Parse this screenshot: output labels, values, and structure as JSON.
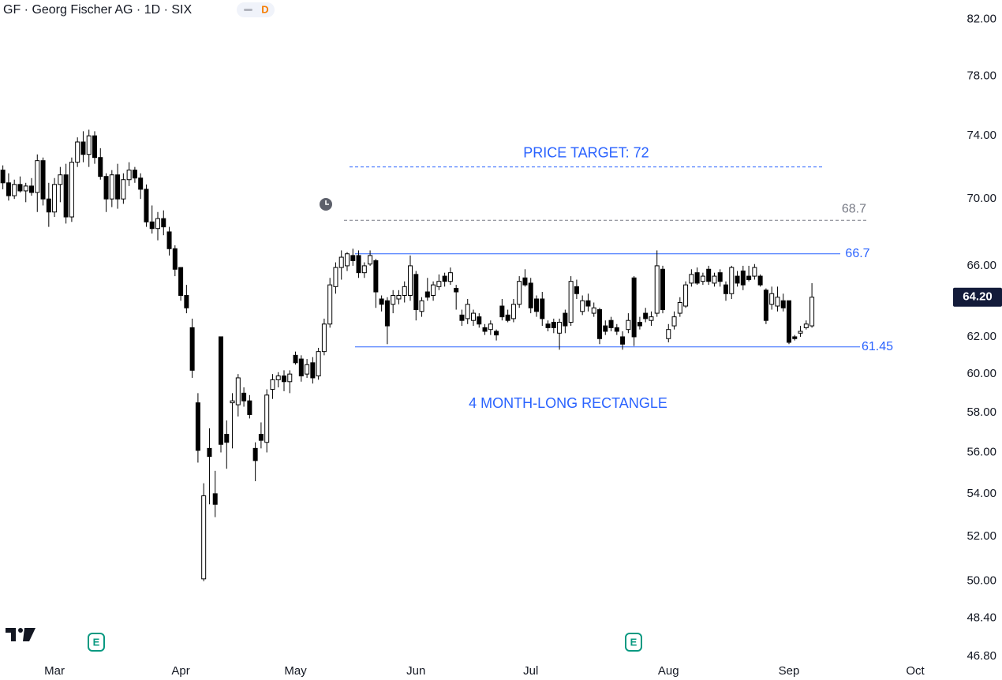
{
  "header": {
    "title": "GF · Georg Fischer AG · 1D · SIX",
    "badge": "D"
  },
  "chart_data": {
    "type": "candlestick",
    "log_scale": true,
    "grid": false,
    "up_color": "#ffffff",
    "down_color": "#000000",
    "wick_color": "#000000",
    "categories": [
      null,
      null,
      null,
      null,
      null,
      null,
      null,
      null,
      null,
      "Mar",
      null,
      null,
      null,
      null,
      null,
      null,
      null,
      null,
      null,
      null,
      null,
      null,
      null,
      null,
      null,
      null,
      null,
      null,
      null,
      null,
      null,
      "Apr",
      null,
      null,
      null,
      null,
      null,
      null,
      null,
      null,
      null,
      null,
      null,
      null,
      null,
      null,
      null,
      null,
      null,
      null,
      null,
      "May",
      null,
      null,
      null,
      null,
      null,
      null,
      null,
      null,
      null,
      null,
      null,
      null,
      null,
      null,
      null,
      null,
      null,
      null,
      null,
      null,
      "Jun",
      null,
      null,
      null,
      null,
      null,
      null,
      null,
      null,
      null,
      null,
      null,
      null,
      null,
      null,
      null,
      null,
      null,
      null,
      null,
      "Jul",
      null,
      null,
      null,
      null,
      null,
      null,
      null,
      null,
      null,
      null,
      null,
      null,
      null,
      null,
      null,
      null,
      null,
      null,
      null,
      null,
      null,
      null,
      null,
      "Aug",
      null,
      null,
      null,
      null,
      null,
      null,
      null,
      null,
      null,
      null,
      null,
      null,
      null,
      null,
      null,
      null,
      null,
      null,
      null,
      null,
      "Sep",
      null,
      null,
      null,
      null,
      null,
      null,
      null,
      null,
      null,
      null,
      null,
      null,
      null,
      null,
      null,
      null,
      null,
      null,
      null,
      null,
      null,
      "Oct",
      null,
      null,
      null,
      null,
      null
    ],
    "open": [
      71.8,
      71.0,
      70.2,
      70.9,
      70.5,
      70.8,
      70.4,
      72.4,
      70.0,
      69.2,
      70.9,
      71.5,
      68.9,
      72.3,
      73.6,
      72.8,
      74.0,
      72.6,
      71.4,
      70.0,
      71.5,
      70.0,
      71.2,
      71.8,
      71.3,
      70.6,
      68.6,
      68.2,
      68.8,
      68.0,
      67.0,
      65.9,
      64.3,
      62.5,
      58.5,
      50.1,
      56.2,
      54.0,
      62.0,
      56.9,
      58.5,
      58.4,
      59.0,
      58.6,
      56.2,
      56.9,
      56.5,
      59.2,
      59.7,
      59.9,
      59.6,
      61.0,
      60.8,
      60.0,
      60.6,
      59.9,
      61.2,
      62.7,
      64.8,
      65.9,
      66.0,
      66.6,
      66.6,
      65.6,
      66.1,
      66.3,
      64.1,
      64.0,
      63.8,
      64.1,
      64.3,
      64.3,
      65.5,
      63.4,
      64.5,
      64.3,
      64.8,
      65.4,
      65.1,
      64.7,
      63.2,
      63.0,
      62.9,
      63.1,
      62.5,
      62.4,
      62.3,
      63.7,
      63.2,
      63.0,
      63.8,
      65.3,
      65.0,
      64.1,
      64.1,
      62.7,
      62.8,
      62.2,
      63.3,
      62.8,
      64.8,
      63.4,
      64.0,
      63.3,
      63.5,
      62.6,
      62.9,
      62.5,
      62.0,
      62.4,
      65.3,
      62.8,
      63.3,
      62.9,
      63.3,
      65.8,
      61.9,
      62.6,
      63.3,
      63.7,
      65.0,
      65.6,
      65.1,
      65.8,
      65.0,
      65.6,
      64.9,
      64.4,
      65.4,
      65.7,
      65.4,
      65.4,
      65.4,
      64.6,
      63.8,
      63.7,
      64.0,
      64.0,
      62.0,
      62.2,
      62.5,
      62.6,
      null,
      null,
      null,
      null,
      null,
      null,
      null,
      null,
      null,
      null,
      null,
      null,
      null,
      null,
      null,
      null,
      null,
      null,
      null,
      null,
      null,
      null,
      null
    ],
    "high": [
      72.1,
      71.6,
      71.2,
      71.4,
      71.0,
      71.3,
      72.8,
      72.6,
      71.0,
      71.3,
      72.0,
      72.2,
      72.6,
      73.9,
      74.3,
      74.4,
      74.3,
      73.2,
      71.6,
      71.8,
      72.2,
      71.6,
      72.3,
      72.0,
      71.6,
      70.9,
      69.6,
      69.2,
      69.3,
      68.3,
      67.2,
      65.9,
      64.9,
      63.0,
      59.0,
      54.5,
      57.2,
      55.1,
      62.0,
      57.6,
      59.0,
      60.0,
      59.3,
      58.9,
      56.5,
      57.5,
      59.2,
      60.0,
      60.1,
      60.2,
      60.2,
      61.2,
      61.0,
      60.8,
      60.9,
      61.4,
      63.0,
      65.3,
      66.2,
      66.9,
      66.8,
      67.0,
      66.9,
      66.2,
      66.9,
      66.4,
      64.3,
      64.2,
      64.6,
      64.6,
      65.1,
      66.6,
      65.7,
      64.2,
      65.3,
      65.1,
      65.5,
      65.6,
      65.9,
      64.9,
      63.5,
      64.1,
      63.5,
      63.3,
      62.7,
      62.9,
      62.4,
      64.1,
      63.5,
      64.1,
      65.4,
      65.8,
      65.3,
      64.3,
      64.5,
      62.9,
      63.0,
      63.0,
      63.5,
      65.4,
      65.2,
      64.3,
      64.4,
      63.9,
      63.6,
      62.9,
      63.1,
      62.7,
      62.3,
      63.3,
      65.4,
      63.1,
      63.6,
      63.4,
      66.9,
      66.0,
      62.7,
      63.4,
      64.2,
      65.1,
      65.8,
      65.9,
      65.6,
      66.0,
      65.6,
      65.8,
      65.1,
      66.0,
      65.7,
      66.0,
      66.0,
      66.1,
      65.5,
      64.7,
      64.8,
      64.8,
      64.4,
      64.0,
      62.1,
      62.6,
      62.9,
      65.0,
      null,
      null,
      null,
      null,
      null,
      null,
      null,
      null,
      null,
      null,
      null,
      null,
      null,
      null,
      null,
      null,
      null,
      null,
      null,
      null,
      null,
      null,
      null
    ],
    "low": [
      70.6,
      69.9,
      70.0,
      70.4,
      69.8,
      70.2,
      69.2,
      69.6,
      68.3,
      68.9,
      69.8,
      68.5,
      68.6,
      72.0,
      72.3,
      72.0,
      72.2,
      71.2,
      69.2,
      69.5,
      69.4,
      69.7,
      70.8,
      71.0,
      70.0,
      68.3,
      67.9,
      67.5,
      67.8,
      66.6,
      65.4,
      64.0,
      63.3,
      59.8,
      55.5,
      50.0,
      53.5,
      52.9,
      56.0,
      55.2,
      56.2,
      57.8,
      58.3,
      57.7,
      54.6,
      56.2,
      56.0,
      58.7,
      59.3,
      59.1,
      59.0,
      60.5,
      59.6,
      59.8,
      59.5,
      59.7,
      61.0,
      62.5,
      64.4,
      65.2,
      65.7,
      66.0,
      65.3,
      65.3,
      66.0,
      63.6,
      63.4,
      61.6,
      63.3,
      63.8,
      63.9,
      64.0,
      62.9,
      63.1,
      64.0,
      64.0,
      64.6,
      64.8,
      64.9,
      63.5,
      62.6,
      62.7,
      62.6,
      62.5,
      62.1,
      62.1,
      61.8,
      62.9,
      62.8,
      62.8,
      63.6,
      64.8,
      63.3,
      63.1,
      62.6,
      62.3,
      62.2,
      61.3,
      62.2,
      62.6,
      64.1,
      63.2,
      63.4,
      63.1,
      61.6,
      62.1,
      62.3,
      62.1,
      61.3,
      62.2,
      61.5,
      62.4,
      62.8,
      62.6,
      63.1,
      63.3,
      61.7,
      62.4,
      63.1,
      63.6,
      64.8,
      64.9,
      64.9,
      64.9,
      64.8,
      64.8,
      64.0,
      64.1,
      64.8,
      64.6,
      65.1,
      65.2,
      64.8,
      62.7,
      63.5,
      63.4,
      63.4,
      61.6,
      61.8,
      62.0,
      62.4,
      62.5,
      null,
      null,
      null,
      null,
      null,
      null,
      null,
      null,
      null,
      null,
      null,
      null,
      null,
      null,
      null,
      null,
      null,
      null,
      null,
      null,
      null,
      null,
      null
    ],
    "close": [
      71.0,
      70.2,
      70.9,
      70.5,
      70.8,
      70.4,
      72.4,
      70.0,
      69.2,
      70.9,
      71.5,
      68.9,
      72.3,
      73.6,
      72.8,
      74.0,
      72.6,
      71.4,
      70.0,
      71.5,
      70.0,
      71.2,
      71.8,
      71.3,
      70.6,
      68.6,
      68.2,
      68.8,
      68.3,
      67.0,
      65.8,
      64.3,
      63.6,
      60.2,
      56.1,
      53.9,
      55.8,
      53.5,
      56.4,
      56.5,
      58.6,
      59.8,
      58.6,
      57.9,
      55.6,
      56.6,
      58.9,
      59.7,
      59.9,
      59.6,
      60.0,
      60.6,
      59.9,
      60.5,
      59.8,
      61.2,
      62.7,
      64.9,
      65.9,
      66.5,
      66.7,
      66.3,
      65.6,
      66.0,
      66.6,
      64.5,
      63.8,
      62.6,
      64.3,
      64.3,
      64.8,
      66.0,
      63.5,
      64.0,
      64.2,
      64.9,
      65.1,
      65.1,
      65.6,
      64.5,
      62.9,
      63.8,
      63.3,
      62.7,
      62.3,
      62.7,
      62.1,
      63.1,
      62.9,
      63.8,
      65.1,
      64.9,
      63.6,
      63.4,
      63.0,
      62.5,
      62.5,
      62.8,
      62.6,
      65.1,
      64.4,
      64.0,
      63.7,
      63.6,
      61.9,
      62.3,
      62.5,
      62.3,
      61.6,
      62.9,
      62.0,
      62.6,
      63.0,
      63.1,
      66.0,
      63.5,
      62.4,
      63.1,
      63.9,
      64.9,
      65.5,
      65.0,
      65.4,
      65.1,
      65.4,
      65.1,
      64.4,
      65.9,
      65.0,
      64.9,
      65.2,
      65.9,
      64.9,
      62.9,
      64.4,
      64.2,
      63.6,
      61.7,
      61.9,
      62.3,
      62.7,
      64.2,
      null,
      null,
      null,
      null,
      null,
      null,
      null,
      null,
      null,
      null,
      null,
      null,
      null,
      null,
      null,
      null,
      null,
      null,
      null,
      null,
      null,
      null,
      null
    ],
    "ylim": [
      46.7,
      83.4
    ],
    "yticks": [
      {
        "value": 82,
        "label": "82.00"
      },
      {
        "value": 78,
        "label": "78.00"
      },
      {
        "value": 74,
        "label": "74.00"
      },
      {
        "value": 70,
        "label": "70.00"
      },
      {
        "value": 66,
        "label": "66.00"
      },
      {
        "value": 62,
        "label": "62.00"
      },
      {
        "value": 60,
        "label": "60.00"
      },
      {
        "value": 58,
        "label": "58.00"
      },
      {
        "value": 56,
        "label": "56.00"
      },
      {
        "value": 54,
        "label": "54.00"
      },
      {
        "value": 52,
        "label": "52.00"
      },
      {
        "value": 50,
        "label": "50.00"
      },
      {
        "value": 48.4,
        "label": "48.40"
      },
      {
        "value": 46.8,
        "label": "46.80"
      }
    ],
    "last_price": {
      "value": 64.2,
      "label": "64.20"
    },
    "levels": [
      {
        "value": 72,
        "label": "PRICE TARGET: 72",
        "color": "#2962ff",
        "dashed": true
      },
      {
        "value": 68.7,
        "color": "#787b86",
        "dashed": true
      },
      {
        "value": 66.7,
        "color": "#2962ff",
        "dashed": false
      },
      {
        "value": 61.45,
        "color": "#2962ff",
        "dashed": false
      }
    ],
    "annotation": "4 MONTH-LONG RECTANGLE",
    "events": [
      "E",
      "E"
    ]
  }
}
